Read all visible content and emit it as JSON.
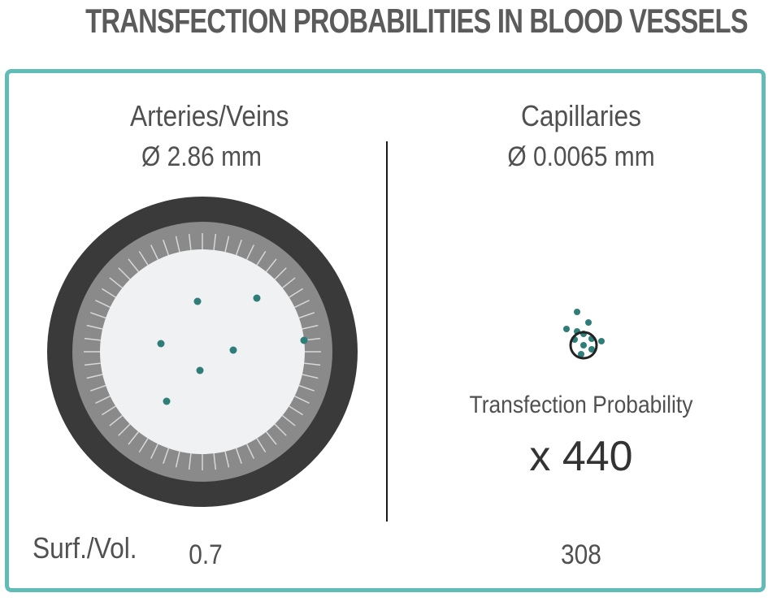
{
  "title": "TRANSFECTION PROBABILITIES IN BLOOD VESSELS",
  "left": {
    "name": "Arteries/Veins",
    "diameter": "Ø 2.86 mm",
    "surf_vol": "0.7"
  },
  "right": {
    "name": "Capillaries",
    "diameter": "Ø 0.0065 mm",
    "surf_vol": "308",
    "probability_label": "Transfection Probability",
    "probability_value": "x 440"
  },
  "row_label": "Surf./Vol.",
  "colors": {
    "border": "#5fbcb7",
    "dot": "#2e7d78",
    "vessel_wall": "#3a3a3a",
    "endothelium": "#8a8a8a",
    "lumen": "#f0f1f3"
  }
}
